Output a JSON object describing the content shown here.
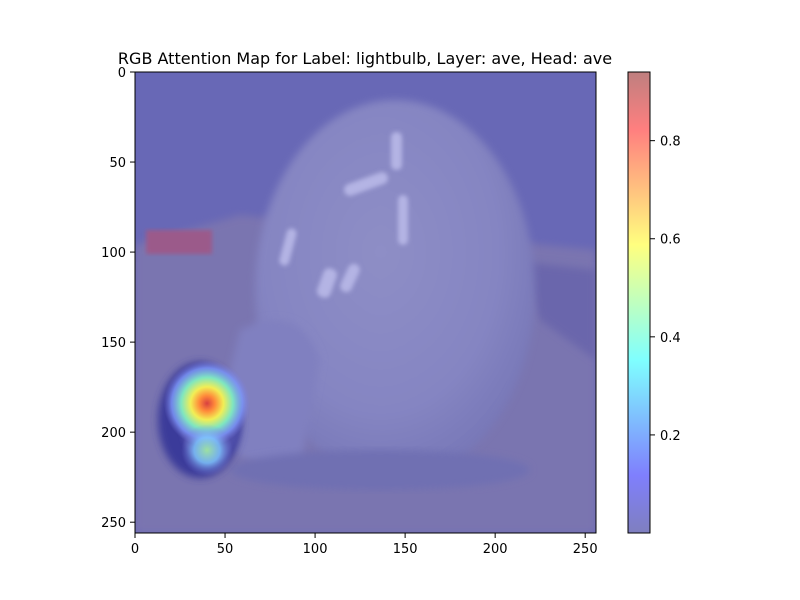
{
  "chart_data": {
    "type": "heatmap",
    "title": "RGB Attention Map for Label: lightbulb, Layer: ave, Head: ave",
    "image_extent": {
      "x": [
        0,
        256
      ],
      "y": [
        0,
        256
      ]
    },
    "x_ticks": [
      0,
      50,
      100,
      150,
      200,
      250
    ],
    "y_ticks": [
      0,
      50,
      100,
      150,
      200,
      250
    ],
    "y_axis_inverted": true,
    "colormap": "jet",
    "overlay_alpha": 0.5,
    "colorbar": {
      "range": [
        0.0,
        0.94
      ],
      "ticks": [
        0.2,
        0.4,
        0.6,
        0.8
      ],
      "tick_labels": [
        "0.2",
        "0.4",
        "0.6",
        "0.8"
      ]
    },
    "hotspots": [
      {
        "x": 40,
        "y": 184,
        "value": 0.92,
        "radius": 15
      },
      {
        "x": 40,
        "y": 210,
        "value": 0.4,
        "radius": 9
      }
    ],
    "underlying_image_subject": "lightbulb"
  }
}
